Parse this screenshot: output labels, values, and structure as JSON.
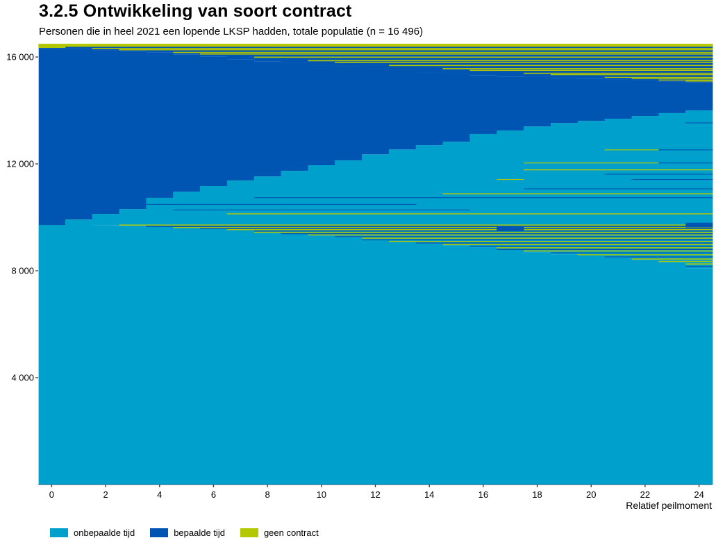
{
  "header": {
    "title": "3.2.5 Ontwikkeling van soort contract",
    "subtitle": "Personen die in heel 2021 een lopende LKSP hadden, totale populatie (n = 16 496)"
  },
  "chart_data": {
    "type": "area",
    "title": "3.2.5 Ontwikkeling van soort contract",
    "subtitle": "Personen die in heel 2021 een lopende LKSP hadden, totale populatie (n = 16 496)",
    "xlabel": "Relatief peilmoment",
    "ylabel": "",
    "xlim": [
      -0.5,
      24.5
    ],
    "ylim": [
      0,
      16496
    ],
    "x_ticks": [
      0,
      2,
      4,
      6,
      8,
      10,
      12,
      14,
      16,
      18,
      20,
      22,
      24
    ],
    "x_tick_labels": [
      "0",
      "2",
      "4",
      "6",
      "8",
      "10",
      "12",
      "14",
      "16",
      "18",
      "20",
      "22",
      "24"
    ],
    "y_ticks": [
      4000,
      8000,
      12000,
      16000
    ],
    "y_tick_labels": [
      "4 000",
      "8 000",
      "12 000",
      "16 000"
    ],
    "grid": false,
    "legend_position": "bottom-left",
    "legend": [
      {
        "name": "onbepaalde tijd",
        "color": "#00a0cc"
      },
      {
        "name": "bepaalde tijd",
        "color": "#0055b3"
      },
      {
        "name": "geen contract",
        "color": "#b3c800"
      }
    ],
    "colors": {
      "onbepaald": "#00a0cc",
      "bepaald": "#0055b3",
      "geen": "#b3c800"
    },
    "x": [
      0,
      1,
      2,
      3,
      4,
      5,
      6,
      7,
      8,
      9,
      10,
      11,
      12,
      13,
      14,
      15,
      16,
      17,
      18,
      19,
      20,
      21,
      22,
      23,
      24
    ],
    "onbepaald_base_top": [
      9714,
      9714,
      9700,
      9680,
      9650,
      9620,
      9590,
      9550,
      9480,
      9400,
      9330,
      9250,
      9180,
      9100,
      9020,
      8940,
      8870,
      8800,
      8700,
      8620,
      8560,
      8480,
      8400,
      8290,
      8100
    ],
    "mixed_low_top": [
      9714,
      9714,
      9714,
      9714,
      9714,
      9714,
      9714,
      9714,
      9714,
      9714,
      9714,
      9714,
      9714,
      9714,
      9714,
      9714,
      9714,
      9714,
      9714,
      9714,
      9714,
      9714,
      9714,
      9714,
      9714
    ],
    "onbepaald_upper_top": [
      9714,
      9920,
      10130,
      10310,
      10730,
      10960,
      11170,
      11380,
      11530,
      11740,
      11950,
      12130,
      12360,
      12540,
      12700,
      12830,
      13120,
      13250,
      13400,
      13530,
      13610,
      13690,
      13790,
      13900,
      14000
    ],
    "bepaald_top": [
      16310,
      16310,
      16260,
      16230,
      16180,
      16100,
      16020,
      15920,
      15840,
      15770,
      15690,
      15640,
      15560,
      15510,
      15430,
      15380,
      15320,
      15270,
      15250,
      15220,
      15190,
      15170,
      15120,
      15090,
      15060
    ],
    "total": 16496,
    "stripes": [
      {
        "v": 9690,
        "h": 40,
        "c": "geen",
        "from": 3,
        "to": 24
      },
      {
        "v": 9640,
        "h": 40,
        "c": "bepaald",
        "from": 4,
        "to": 24
      },
      {
        "v": 9600,
        "h": 35,
        "c": "geen",
        "from": 5,
        "to": 24
      },
      {
        "v": 9560,
        "h": 35,
        "c": "bepaald",
        "from": 6,
        "to": 24
      },
      {
        "v": 9520,
        "h": 40,
        "c": "geen",
        "from": 7,
        "to": 24
      },
      {
        "v": 9470,
        "h": 35,
        "c": "bepaald",
        "from": 8,
        "to": 24
      },
      {
        "v": 9420,
        "h": 40,
        "c": "geen",
        "from": 8,
        "to": 24
      },
      {
        "v": 9370,
        "h": 35,
        "c": "bepaald",
        "from": 9,
        "to": 24
      },
      {
        "v": 9320,
        "h": 40,
        "c": "geen",
        "from": 10,
        "to": 24
      },
      {
        "v": 9260,
        "h": 35,
        "c": "bepaald",
        "from": 11,
        "to": 24
      },
      {
        "v": 9200,
        "h": 40,
        "c": "geen",
        "from": 12,
        "to": 24
      },
      {
        "v": 9140,
        "h": 35,
        "c": "bepaald",
        "from": 12,
        "to": 24
      },
      {
        "v": 9080,
        "h": 40,
        "c": "geen",
        "from": 13,
        "to": 24
      },
      {
        "v": 9020,
        "h": 35,
        "c": "bepaald",
        "from": 14,
        "to": 24
      },
      {
        "v": 8960,
        "h": 40,
        "c": "geen",
        "from": 15,
        "to": 24
      },
      {
        "v": 8900,
        "h": 35,
        "c": "bepaald",
        "from": 16,
        "to": 24
      },
      {
        "v": 8840,
        "h": 40,
        "c": "geen",
        "from": 17,
        "to": 24
      },
      {
        "v": 8780,
        "h": 35,
        "c": "bepaald",
        "from": 17,
        "to": 24
      },
      {
        "v": 8720,
        "h": 40,
        "c": "geen",
        "from": 18,
        "to": 24
      },
      {
        "v": 8650,
        "h": 35,
        "c": "bepaald",
        "from": 19,
        "to": 24
      },
      {
        "v": 8580,
        "h": 40,
        "c": "geen",
        "from": 20,
        "to": 24
      },
      {
        "v": 8500,
        "h": 35,
        "c": "bepaald",
        "from": 21,
        "to": 24
      },
      {
        "v": 8420,
        "h": 40,
        "c": "geen",
        "from": 22,
        "to": 24
      },
      {
        "v": 8330,
        "h": 40,
        "c": "geen",
        "from": 23,
        "to": 24
      },
      {
        "v": 8230,
        "h": 45,
        "c": "geen",
        "from": 24,
        "to": 24
      },
      {
        "v": 8150,
        "h": 35,
        "c": "bepaald",
        "from": 24,
        "to": 24
      },
      {
        "v": 9500,
        "h": 150,
        "c": "bepaald",
        "from": 17,
        "to": 17
      },
      {
        "v": 9620,
        "h": 180,
        "c": "bepaald",
        "from": 24,
        "to": 24
      },
      {
        "v": 10110,
        "h": 40,
        "c": "geen",
        "from": 7,
        "to": 24
      },
      {
        "v": 10180,
        "h": 30,
        "c": "bepaald",
        "from": 0,
        "to": 0
      },
      {
        "v": 10260,
        "h": 30,
        "c": "bepaald",
        "from": 5,
        "to": 15
      },
      {
        "v": 10470,
        "h": 30,
        "c": "bepaald",
        "from": 4,
        "to": 13
      },
      {
        "v": 10720,
        "h": 30,
        "c": "bepaald",
        "from": 8,
        "to": 24
      },
      {
        "v": 10860,
        "h": 40,
        "c": "geen",
        "from": 15,
        "to": 24
      },
      {
        "v": 11050,
        "h": 30,
        "c": "bepaald",
        "from": 18,
        "to": 24
      },
      {
        "v": 11400,
        "h": 30,
        "c": "geen",
        "from": 17,
        "to": 17
      },
      {
        "v": 11400,
        "h": 30,
        "c": "bepaald",
        "from": 22,
        "to": 24
      },
      {
        "v": 11600,
        "h": 30,
        "c": "bepaald",
        "from": 21,
        "to": 24
      },
      {
        "v": 11760,
        "h": 35,
        "c": "geen",
        "from": 18,
        "to": 24
      },
      {
        "v": 12020,
        "h": 30,
        "c": "geen",
        "from": 18,
        "to": 22
      },
      {
        "v": 12020,
        "h": 30,
        "c": "bepaald",
        "from": 23,
        "to": 24
      },
      {
        "v": 12510,
        "h": 30,
        "c": "geen",
        "from": 21,
        "to": 22
      },
      {
        "v": 12510,
        "h": 30,
        "c": "bepaald",
        "from": 23,
        "to": 24
      },
      {
        "v": 13520,
        "h": 30,
        "c": "bepaald",
        "from": 24,
        "to": 24
      },
      {
        "v": 16380,
        "h": 116,
        "c": "geen",
        "from": 0,
        "to": 24
      },
      {
        "v": 16340,
        "h": 40,
        "c": "geen",
        "from": 0,
        "to": 0
      },
      {
        "v": 16300,
        "h": 40,
        "c": "geen",
        "from": 2,
        "to": 24
      },
      {
        "v": 16250,
        "h": 40,
        "c": "geen",
        "from": 3,
        "to": 24
      },
      {
        "v": 16200,
        "h": 40,
        "c": "bepaald",
        "from": 4,
        "to": 24
      },
      {
        "v": 16150,
        "h": 40,
        "c": "geen",
        "from": 5,
        "to": 24
      },
      {
        "v": 16090,
        "h": 40,
        "c": "geen",
        "from": 6,
        "to": 24
      },
      {
        "v": 16030,
        "h": 40,
        "c": "bepaald",
        "from": 7,
        "to": 24
      },
      {
        "v": 15970,
        "h": 45,
        "c": "geen",
        "from": 8,
        "to": 24
      },
      {
        "v": 15900,
        "h": 40,
        "c": "bepaald",
        "from": 9,
        "to": 24
      },
      {
        "v": 15840,
        "h": 45,
        "c": "geen",
        "from": 10,
        "to": 24
      },
      {
        "v": 15780,
        "h": 40,
        "c": "geen",
        "from": 11,
        "to": 24
      },
      {
        "v": 15720,
        "h": 40,
        "c": "bepaald",
        "from": 12,
        "to": 24
      },
      {
        "v": 15660,
        "h": 45,
        "c": "geen",
        "from": 13,
        "to": 24
      },
      {
        "v": 15600,
        "h": 40,
        "c": "bepaald",
        "from": 14,
        "to": 24
      },
      {
        "v": 15540,
        "h": 45,
        "c": "geen",
        "from": 15,
        "to": 24
      },
      {
        "v": 15480,
        "h": 40,
        "c": "geen",
        "from": 16,
        "to": 24
      },
      {
        "v": 15420,
        "h": 40,
        "c": "bepaald",
        "from": 17,
        "to": 24
      },
      {
        "v": 15370,
        "h": 40,
        "c": "geen",
        "from": 18,
        "to": 24
      },
      {
        "v": 15320,
        "h": 35,
        "c": "geen",
        "from": 19,
        "to": 24
      },
      {
        "v": 15270,
        "h": 35,
        "c": "bepaald",
        "from": 20,
        "to": 24
      },
      {
        "v": 15220,
        "h": 35,
        "c": "geen",
        "from": 21,
        "to": 24
      },
      {
        "v": 15170,
        "h": 35,
        "c": "geen",
        "from": 22,
        "to": 24
      },
      {
        "v": 15120,
        "h": 35,
        "c": "geen",
        "from": 23,
        "to": 24
      },
      {
        "v": 15080,
        "h": 35,
        "c": "geen",
        "from": 24,
        "to": 24
      }
    ]
  }
}
